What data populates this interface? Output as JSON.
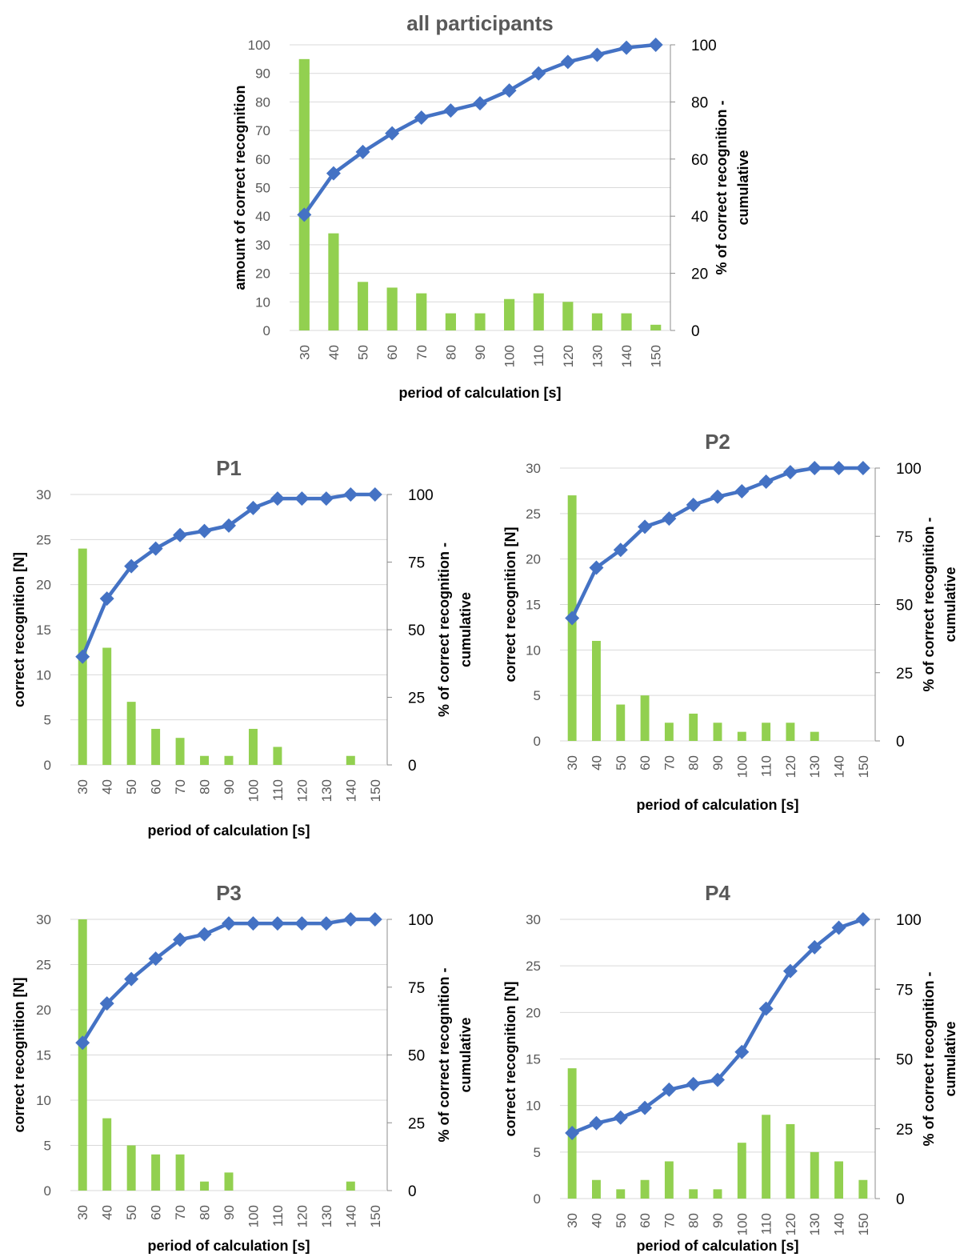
{
  "colors": {
    "bar": "#92d050",
    "line": "#4472c4",
    "grid": "#d9d9d9",
    "axis": "#8c8c8c",
    "text": "#595959"
  },
  "chart_data": [
    {
      "type": "bar+line",
      "title": "all participants",
      "xlabel": "period of calculation [s]",
      "ylabel": "amount of correct recognition",
      "y2label": "% of correct recognition - cumulative",
      "categories": [
        "30",
        "40",
        "50",
        "60",
        "70",
        "80",
        "90",
        "100",
        "110",
        "120",
        "130",
        "140",
        "150"
      ],
      "bar_values": [
        95,
        34,
        17,
        15,
        13,
        6,
        6,
        11,
        13,
        10,
        6,
        6,
        2
      ],
      "line_values": [
        40.5,
        55,
        62.5,
        69,
        74.5,
        77,
        79.5,
        84,
        90,
        94,
        96.5,
        99,
        100
      ],
      "ylim": [
        0,
        100
      ],
      "yticks": [
        0,
        10,
        20,
        30,
        40,
        50,
        60,
        70,
        80,
        90,
        100
      ],
      "y2lim": [
        0,
        100
      ],
      "y2ticks": [
        0,
        20,
        40,
        60,
        80,
        100
      ],
      "grid": true
    },
    {
      "type": "bar+line",
      "title": "P1",
      "xlabel": "period of calculation [s]",
      "ylabel": "correct recognition [N]",
      "y2label": "% of  correct recognition - cumulative",
      "categories": [
        "30",
        "40",
        "50",
        "60",
        "70",
        "80",
        "90",
        "100",
        "110",
        "120",
        "130",
        "140",
        "150"
      ],
      "bar_values": [
        24,
        13,
        7,
        4,
        3,
        1,
        1,
        4,
        2,
        0,
        0,
        1,
        0
      ],
      "line_values": [
        40,
        61.5,
        73.5,
        80,
        85,
        86.5,
        88.5,
        95,
        98.5,
        98.5,
        98.5,
        100,
        100
      ],
      "ylim": [
        0,
        30
      ],
      "yticks": [
        0,
        5,
        10,
        15,
        20,
        25,
        30
      ],
      "y2lim": [
        0,
        100
      ],
      "y2ticks": [
        0,
        25,
        50,
        75,
        100
      ],
      "grid": true
    },
    {
      "type": "bar+line",
      "title": "P2",
      "xlabel": "period of calculation [s]",
      "ylabel": "correct recognition [N]",
      "y2label": "% of  correct recognition - cumulative",
      "categories": [
        "30",
        "40",
        "50",
        "60",
        "70",
        "80",
        "90",
        "100",
        "110",
        "120",
        "130",
        "140",
        "150"
      ],
      "bar_values": [
        27,
        11,
        4,
        5,
        2,
        3,
        2,
        1,
        2,
        2,
        1,
        0,
        0
      ],
      "line_values": [
        45,
        63.5,
        70,
        78.5,
        81.5,
        86.5,
        89.5,
        91.5,
        95,
        98.5,
        100,
        100,
        100
      ],
      "ylim": [
        0,
        30
      ],
      "yticks": [
        0,
        5,
        10,
        15,
        20,
        25,
        30
      ],
      "y2lim": [
        0,
        100
      ],
      "y2ticks": [
        0,
        25,
        50,
        75,
        100
      ],
      "grid": true
    },
    {
      "type": "bar+line",
      "title": "P3",
      "xlabel": "period of calculation [s]",
      "ylabel": "correct recognition [N]",
      "y2label": "% of  correct recognition - cumulative",
      "categories": [
        "30",
        "40",
        "50",
        "60",
        "70",
        "80",
        "90",
        "100",
        "110",
        "120",
        "130",
        "140",
        "150"
      ],
      "bar_values": [
        30,
        8,
        5,
        4,
        4,
        1,
        2,
        0,
        0,
        0,
        0,
        1,
        0
      ],
      "line_values": [
        54.5,
        69,
        78,
        85.5,
        92.5,
        94.5,
        98.5,
        98.5,
        98.5,
        98.5,
        98.5,
        100,
        100
      ],
      "ylim": [
        0,
        30
      ],
      "yticks": [
        0,
        5,
        10,
        15,
        20,
        25,
        30
      ],
      "y2lim": [
        0,
        100
      ],
      "y2ticks": [
        0,
        25,
        50,
        75,
        100
      ],
      "grid": true
    },
    {
      "type": "bar+line",
      "title": "P4",
      "xlabel": "period of calculation [s]",
      "ylabel": "correct recognition [N]",
      "y2label": "% of  correct recognition - cumulative",
      "categories": [
        "30",
        "40",
        "50",
        "60",
        "70",
        "80",
        "90",
        "100",
        "110",
        "120",
        "130",
        "140",
        "150"
      ],
      "bar_values": [
        14,
        2,
        1,
        2,
        4,
        1,
        1,
        6,
        9,
        8,
        5,
        4,
        2
      ],
      "line_values": [
        23.5,
        27,
        29,
        32.5,
        39,
        41,
        42.5,
        52.5,
        68,
        81.5,
        90,
        97,
        100
      ],
      "ylim": [
        0,
        30
      ],
      "yticks": [
        0,
        5,
        10,
        15,
        20,
        25,
        30
      ],
      "y2lim": [
        0,
        100
      ],
      "y2ticks": [
        0,
        25,
        50,
        75,
        100
      ],
      "grid": true
    }
  ]
}
